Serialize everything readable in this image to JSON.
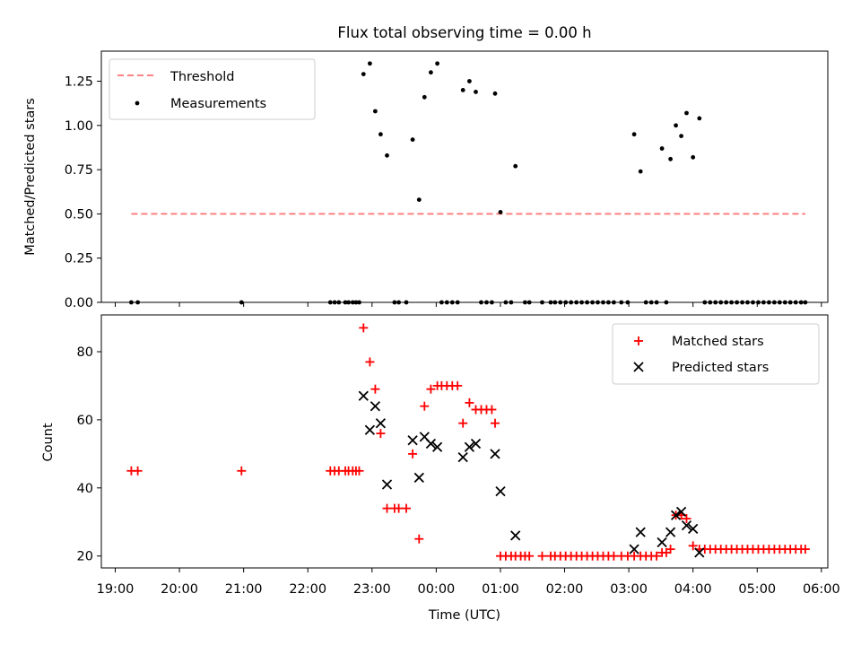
{
  "chart_data": [
    {
      "type": "scatter",
      "title": "Flux total observing time = 0.00 h",
      "xlabel": "",
      "ylabel": "Matched/Predicted stars",
      "xlim": [
        "18:47",
        "06:06"
      ],
      "ylim": [
        0,
        1.42
      ],
      "yticks": [
        "0.00",
        "0.25",
        "0.50",
        "0.75",
        "1.00",
        "1.25"
      ],
      "legend": "top-left",
      "threshold": {
        "name": "Threshold",
        "value": 0.5,
        "x_range": [
          "19:15",
          "05:45"
        ],
        "color": "#ff7070",
        "style": "dashed"
      },
      "series": [
        {
          "name": "Measurements",
          "color": "#000000",
          "marker": "dot",
          "points": [
            [
              "19:15",
              0
            ],
            [
              "19:21",
              0
            ],
            [
              "20:58",
              0
            ],
            [
              "22:21",
              0
            ],
            [
              "22:25",
              0
            ],
            [
              "22:29",
              0
            ],
            [
              "22:35",
              0
            ],
            [
              "22:38",
              0
            ],
            [
              "22:42",
              0
            ],
            [
              "22:45",
              0
            ],
            [
              "22:48",
              0
            ],
            [
              "22:52",
              1.29
            ],
            [
              "22:58",
              1.35
            ],
            [
              "23:03",
              1.08
            ],
            [
              "23:08",
              0.95
            ],
            [
              "23:14",
              0.83
            ],
            [
              "23:21",
              0
            ],
            [
              "23:25",
              0
            ],
            [
              "23:32",
              0
            ],
            [
              "23:38",
              0.92
            ],
            [
              "23:44",
              0.58
            ],
            [
              "23:49",
              1.16
            ],
            [
              "23:55",
              1.3
            ],
            [
              "24:01",
              1.35
            ],
            [
              "24:05",
              0
            ],
            [
              "24:10",
              0
            ],
            [
              "24:15",
              0
            ],
            [
              "24:20",
              0
            ],
            [
              "24:25",
              1.2
            ],
            [
              "24:31",
              1.25
            ],
            [
              "24:37",
              1.19
            ],
            [
              "24:42",
              0
            ],
            [
              "24:47",
              0
            ],
            [
              "24:52",
              0
            ],
            [
              "24:55",
              1.18
            ],
            [
              "25:00",
              0.51
            ],
            [
              "25:05",
              0
            ],
            [
              "25:10",
              0
            ],
            [
              "25:14",
              0.77
            ],
            [
              "25:23",
              0
            ],
            [
              "25:27",
              0
            ],
            [
              "25:39",
              0
            ],
            [
              "25:47",
              0
            ],
            [
              "25:51",
              0
            ],
            [
              "25:56",
              0
            ],
            [
              "26:01",
              0
            ],
            [
              "26:06",
              0
            ],
            [
              "26:11",
              0
            ],
            [
              "26:16",
              0
            ],
            [
              "26:21",
              0
            ],
            [
              "26:26",
              0
            ],
            [
              "26:31",
              0
            ],
            [
              "26:36",
              0
            ],
            [
              "26:41",
              0
            ],
            [
              "26:46",
              0
            ],
            [
              "26:53",
              0
            ],
            [
              "26:59",
              0
            ],
            [
              "27:05",
              0.95
            ],
            [
              "27:11",
              0.74
            ],
            [
              "27:16",
              0
            ],
            [
              "27:21",
              0
            ],
            [
              "27:26",
              0
            ],
            [
              "27:31",
              0.87
            ],
            [
              "27:35",
              0
            ],
            [
              "27:39",
              0.81
            ],
            [
              "27:44",
              1.0
            ],
            [
              "27:49",
              0.94
            ],
            [
              "27:54",
              1.07
            ],
            [
              "28:00",
              0.82
            ],
            [
              "28:06",
              1.04
            ],
            [
              "28:11",
              0
            ],
            [
              "28:16",
              0
            ],
            [
              "28:21",
              0
            ],
            [
              "28:26",
              0
            ],
            [
              "28:31",
              0
            ],
            [
              "28:36",
              0
            ],
            [
              "28:41",
              0
            ],
            [
              "28:46",
              0
            ],
            [
              "28:51",
              0
            ],
            [
              "28:56",
              0
            ],
            [
              "29:01",
              0
            ],
            [
              "29:06",
              0
            ],
            [
              "29:11",
              0
            ],
            [
              "29:16",
              0
            ],
            [
              "29:21",
              0
            ],
            [
              "29:26",
              0
            ],
            [
              "29:31",
              0
            ],
            [
              "29:36",
              0
            ],
            [
              "29:41",
              0
            ],
            [
              "29:45",
              0
            ]
          ]
        }
      ]
    },
    {
      "type": "scatter",
      "title": "",
      "xlabel": "Time (UTC)",
      "ylabel": "Count",
      "xlim": [
        "18:47",
        "06:06"
      ],
      "ylim": [
        16.5,
        90.8
      ],
      "xticks": [
        "19:00",
        "20:00",
        "21:00",
        "22:00",
        "23:00",
        "00:00",
        "01:00",
        "02:00",
        "03:00",
        "04:00",
        "05:00",
        "06:00"
      ],
      "yticks": [
        "20",
        "40",
        "60",
        "80"
      ],
      "legend": "top-right",
      "series": [
        {
          "name": "Matched stars",
          "color": "#ff0000",
          "marker": "plus",
          "points": [
            [
              "19:15",
              45
            ],
            [
              "19:21",
              45
            ],
            [
              "20:58",
              45
            ],
            [
              "22:21",
              45
            ],
            [
              "22:25",
              45
            ],
            [
              "22:29",
              45
            ],
            [
              "22:35",
              45
            ],
            [
              "22:38",
              45
            ],
            [
              "22:42",
              45
            ],
            [
              "22:45",
              45
            ],
            [
              "22:48",
              45
            ],
            [
              "22:52",
              87
            ],
            [
              "22:58",
              77
            ],
            [
              "23:03",
              69
            ],
            [
              "23:08",
              56
            ],
            [
              "23:14",
              34
            ],
            [
              "23:21",
              34
            ],
            [
              "23:25",
              34
            ],
            [
              "23:32",
              34
            ],
            [
              "23:38",
              50
            ],
            [
              "23:44",
              25
            ],
            [
              "23:49",
              64
            ],
            [
              "23:55",
              69
            ],
            [
              "24:01",
              70
            ],
            [
              "24:05",
              70
            ],
            [
              "24:10",
              70
            ],
            [
              "24:15",
              70
            ],
            [
              "24:20",
              70
            ],
            [
              "24:25",
              59
            ],
            [
              "24:31",
              65
            ],
            [
              "24:37",
              63
            ],
            [
              "24:42",
              63
            ],
            [
              "24:47",
              63
            ],
            [
              "24:52",
              63
            ],
            [
              "24:55",
              59
            ],
            [
              "25:00",
              20
            ],
            [
              "25:05",
              20
            ],
            [
              "25:10",
              20
            ],
            [
              "25:14",
              20
            ],
            [
              "25:19",
              20
            ],
            [
              "25:23",
              20
            ],
            [
              "25:27",
              20
            ],
            [
              "25:39",
              20
            ],
            [
              "25:47",
              20
            ],
            [
              "25:51",
              20
            ],
            [
              "25:56",
              20
            ],
            [
              "26:01",
              20
            ],
            [
              "26:06",
              20
            ],
            [
              "26:11",
              20
            ],
            [
              "26:16",
              20
            ],
            [
              "26:21",
              20
            ],
            [
              "26:26",
              20
            ],
            [
              "26:31",
              20
            ],
            [
              "26:36",
              20
            ],
            [
              "26:41",
              20
            ],
            [
              "26:46",
              20
            ],
            [
              "26:53",
              20
            ],
            [
              "26:59",
              20
            ],
            [
              "27:05",
              20
            ],
            [
              "27:11",
              20
            ],
            [
              "27:16",
              20
            ],
            [
              "27:21",
              20
            ],
            [
              "27:26",
              20
            ],
            [
              "27:31",
              21
            ],
            [
              "27:35",
              21
            ],
            [
              "27:39",
              22
            ],
            [
              "27:44",
              32
            ],
            [
              "27:49",
              32
            ],
            [
              "27:54",
              31
            ],
            [
              "28:00",
              23
            ],
            [
              "28:06",
              22
            ],
            [
              "28:11",
              22
            ],
            [
              "28:16",
              22
            ],
            [
              "28:21",
              22
            ],
            [
              "28:26",
              22
            ],
            [
              "28:31",
              22
            ],
            [
              "28:36",
              22
            ],
            [
              "28:41",
              22
            ],
            [
              "28:46",
              22
            ],
            [
              "28:51",
              22
            ],
            [
              "28:56",
              22
            ],
            [
              "29:01",
              22
            ],
            [
              "29:06",
              22
            ],
            [
              "29:11",
              22
            ],
            [
              "29:16",
              22
            ],
            [
              "29:21",
              22
            ],
            [
              "29:26",
              22
            ],
            [
              "29:31",
              22
            ],
            [
              "29:36",
              22
            ],
            [
              "29:41",
              22
            ],
            [
              "29:45",
              22
            ]
          ]
        },
        {
          "name": "Predicted stars",
          "color": "#000000",
          "marker": "x",
          "points": [
            [
              "22:52",
              67
            ],
            [
              "22:58",
              57
            ],
            [
              "23:03",
              64
            ],
            [
              "23:08",
              59
            ],
            [
              "23:14",
              41
            ],
            [
              "23:38",
              54
            ],
            [
              "23:44",
              43
            ],
            [
              "23:49",
              55
            ],
            [
              "23:55",
              53
            ],
            [
              "24:01",
              52
            ],
            [
              "24:25",
              49
            ],
            [
              "24:31",
              52
            ],
            [
              "24:37",
              53
            ],
            [
              "24:55",
              50
            ],
            [
              "25:00",
              39
            ],
            [
              "25:14",
              26
            ],
            [
              "27:05",
              22
            ],
            [
              "27:11",
              27
            ],
            [
              "27:31",
              24
            ],
            [
              "27:39",
              27
            ],
            [
              "27:44",
              32
            ],
            [
              "27:49",
              33
            ],
            [
              "27:54",
              29
            ],
            [
              "28:00",
              28
            ],
            [
              "28:06",
              21
            ]
          ]
        }
      ]
    }
  ]
}
